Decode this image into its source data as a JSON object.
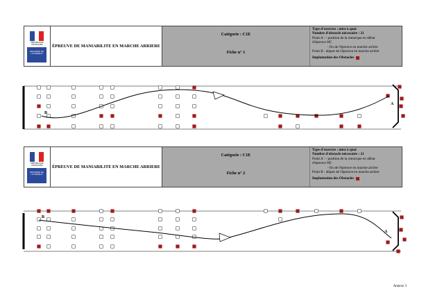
{
  "sheets": [
    {
      "logo_top": "RÉPUBLIQUE FRANÇAISE",
      "logo_bottom": "MINISTÈRE DE L'INTÉRIEUR",
      "title": "ÉPREUVE DE MANIABILITE EN MARCHE ARRIERE",
      "category": "Catégorie : C1E",
      "fiche": "Fiche n° 1",
      "info": {
        "type": "Type d'exercice : mise à quai",
        "count": "Nombre d'obstacle nécessaire : 21",
        "point_a_1": "Point A : - position de la remorque en début",
        "point_a_2": "d'épreuve HC",
        "point_a_3": "- fin de l'épreuve en marche arrière",
        "point_b": "Point B : départ de l'épreuve en marche arrière",
        "impl": "Implantation des Obstacles"
      },
      "track_labels": {
        "a": "A",
        "b": "B"
      }
    },
    {
      "logo_top": "RÉPUBLIQUE FRANÇAISE",
      "logo_bottom": "MINISTÈRE DE L'INTÉRIEUR",
      "title": "ÉPREUVE DE MANIABILITE EN MARCHE ARRIERE",
      "category": "Catégorie : C1E",
      "fiche": "Fiche n° 2",
      "info": {
        "type": "Type d'exercice : mise à quai",
        "count": "Nombre d'obstacle nécessaire : 21",
        "point_a_1": "Point A : - position de la remorque en début",
        "point_a_2": "d'épreuve HC",
        "point_a_3": "- fin de l'épreuve en marche arrière",
        "point_b": "Point B : départ de l'épreuve en marche arrière",
        "impl": "Implantation des Obstacles"
      },
      "track_labels": {
        "a": "A",
        "b": "B"
      }
    }
  ],
  "footer": "Annexe 3",
  "colors": {
    "obstacle": "#a11a1a",
    "header_grey": "#a9a9a9",
    "logo_blue": "#2c4a9c"
  }
}
